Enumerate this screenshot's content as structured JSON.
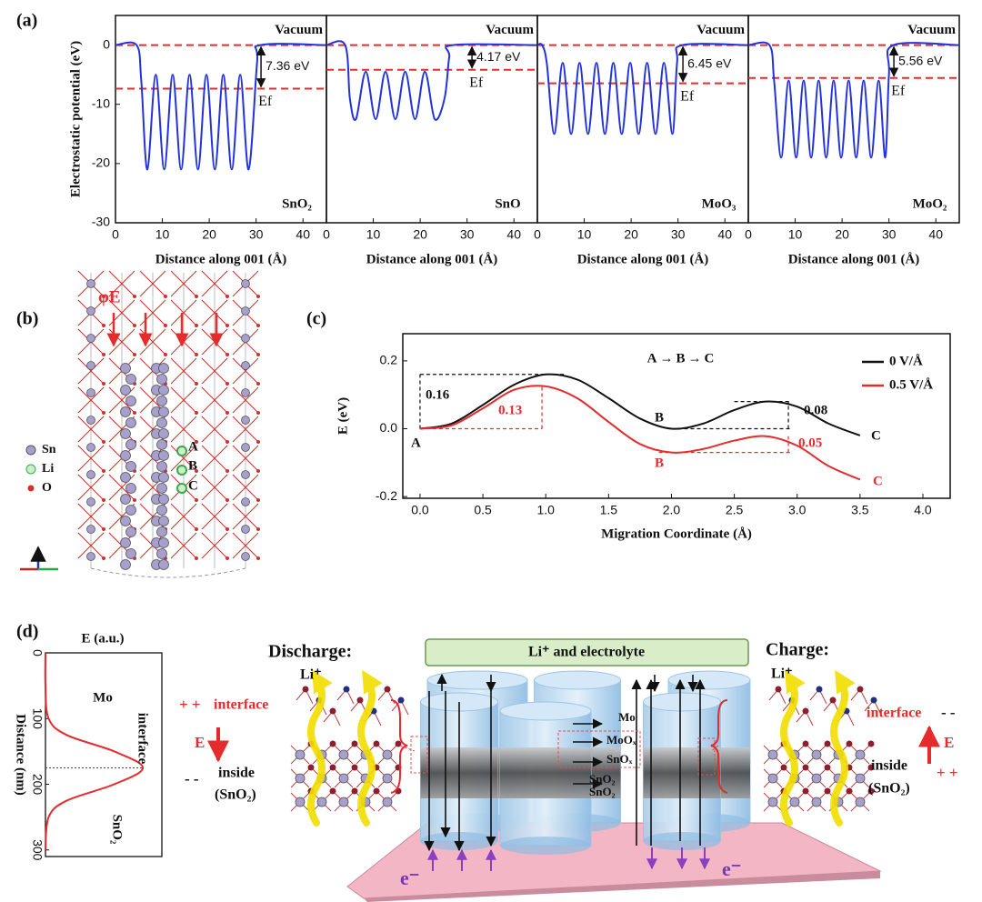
{
  "panel_labels": [
    "(a)",
    "(b)",
    "(c)",
    "(d)"
  ],
  "chart_data": [
    {
      "type": "line",
      "ylabel": "Electrostatic potential (eV)",
      "xlabel": "Distance along 001 (Å)",
      "xlim": [
        0,
        45
      ],
      "xticks": [
        0,
        10,
        20,
        30,
        40
      ],
      "ylim": [
        -30,
        5
      ],
      "yticks": [
        0,
        -10,
        -20,
        -30
      ],
      "x": [
        0,
        4.5,
        5.5,
        6.8,
        8.6,
        10.4,
        12.2,
        14,
        15.8,
        17.6,
        19.4,
        21.2,
        23,
        24.8,
        26.6,
        28.4,
        30.2,
        31,
        45
      ],
      "series": [
        {
          "color": "#2233dd",
          "values": [
            0,
            0,
            -6,
            -21,
            -5,
            -21,
            -5,
            -21,
            -5,
            -21,
            -5,
            -21,
            -5,
            -21,
            -5,
            -21,
            -3,
            0,
            0
          ]
        }
      ],
      "material": "SnO₂",
      "vacuum_label": "Vacuum",
      "fermi_label": "Ef",
      "gap_label": "7.36 eV",
      "vacuum_level": 0,
      "fermi_level": -7.36,
      "reference_color": "#e52b2b"
    },
    {
      "type": "line",
      "xlabel": "Distance along 001 (Å)",
      "xlim": [
        0,
        45
      ],
      "xticks": [
        0,
        10,
        20,
        30,
        40
      ],
      "ylim": [
        -30,
        5
      ],
      "x": [
        0,
        4,
        5,
        6.3,
        8.4,
        10.5,
        12.6,
        14.7,
        16.8,
        18.9,
        21,
        23.1,
        25.2,
        26.2,
        27,
        45
      ],
      "series": [
        {
          "color": "#2233dd",
          "values": [
            0,
            0,
            -9,
            -12.5,
            -4.5,
            -12.5,
            -4.5,
            -12.5,
            -4.5,
            -12.5,
            -4.5,
            -12.5,
            -9,
            -2,
            0,
            0
          ]
        }
      ],
      "material": "SnO",
      "vacuum_label": "Vacuum",
      "fermi_label": "Ef",
      "gap_label": "4.17 eV",
      "vacuum_level": 0,
      "fermi_level": -4.17,
      "reference_color": "#e52b2b"
    },
    {
      "type": "line",
      "xlabel": "Distance along 001 (Å)",
      "xlim": [
        0,
        45
      ],
      "xticks": [
        0,
        10,
        20,
        30,
        40
      ],
      "ylim": [
        -30,
        5
      ],
      "x": [
        0,
        1,
        2,
        3.6,
        5.4,
        7.2,
        9,
        10.8,
        12.6,
        14.4,
        16.2,
        18,
        19.8,
        21.6,
        23.4,
        25.2,
        27,
        28.8,
        29.8,
        31,
        45
      ],
      "series": [
        {
          "color": "#2233dd",
          "values": [
            0,
            0,
            -3,
            -15,
            -3,
            -15,
            -3,
            -15,
            -3,
            -15,
            -3,
            -15,
            -3,
            -15,
            -3,
            -15,
            -3,
            -15,
            -3,
            0,
            0
          ]
        }
      ],
      "material": "MoO₃",
      "vacuum_label": "Vacuum",
      "fermi_label": "Ef",
      "gap_label": "6.45 eV",
      "vacuum_level": 0,
      "fermi_level": -6.45,
      "reference_color": "#e52b2b"
    },
    {
      "type": "line",
      "xlabel": "Distance along 001 (Å)",
      "xlim": [
        0,
        45
      ],
      "xticks": [
        0,
        10,
        20,
        30,
        40
      ],
      "ylim": [
        -30,
        5
      ],
      "x": [
        0,
        4.5,
        5.5,
        7,
        8.6,
        10.2,
        11.8,
        13.4,
        15,
        16.6,
        18.2,
        19.8,
        21.4,
        23,
        24.6,
        26.2,
        27.8,
        29.2,
        30,
        31,
        45
      ],
      "series": [
        {
          "color": "#2233dd",
          "values": [
            0,
            0,
            -6,
            -19,
            -6,
            -19,
            -6,
            -19,
            -6,
            -19,
            -6,
            -19,
            -6,
            -19,
            -6,
            -19,
            -6,
            -19,
            -5,
            0,
            0
          ]
        }
      ],
      "material": "MoO₂",
      "vacuum_label": "Vacuum",
      "fermi_label": "Ef",
      "gap_label": "5.56 eV",
      "vacuum_level": 0,
      "fermi_level": -5.56,
      "reference_color": "#e52b2b"
    },
    {
      "type": "line",
      "ylabel": "E (eV)",
      "xlabel": "Migration Coordinate (Å)",
      "path_label": "A→B→C",
      "xlim": [
        -0.137,
        4.217
      ],
      "xticks": [
        {
          "value": 0,
          "label": "0.0"
        },
        0.5,
        {
          "value": 1,
          "label": "1.0"
        },
        1.5,
        {
          "value": 2,
          "label": "2.0"
        },
        2.5,
        {
          "value": 3,
          "label": "3.0"
        },
        3.5,
        {
          "value": 4,
          "label": "4.0"
        }
      ],
      "ylim": [
        -0.205,
        0.28
      ],
      "yticks": [
        -0.2,
        {
          "value": 0,
          "label": "0.0"
        },
        0.2
      ],
      "legend": "top-right",
      "x": [
        0,
        0.25,
        0.5,
        0.75,
        1,
        1.25,
        1.5,
        1.75,
        2,
        2.25,
        2.5,
        2.75,
        3,
        3.25,
        3.5
      ],
      "series": [
        {
          "name": "0 V/Å",
          "color": "#111111",
          "values": [
            0,
            0.015,
            0.07,
            0.13,
            0.16,
            0.145,
            0.09,
            0.03,
            0,
            0.015,
            0.055,
            0.08,
            0.065,
            0.015,
            -0.02
          ],
          "barrier_labels": [
            "0.16",
            "0.08"
          ],
          "point_labels": [
            "A",
            "B",
            "C"
          ]
        },
        {
          "name": "0.5 V/Å",
          "color": "#e52b2b",
          "values": [
            0,
            0.01,
            0.06,
            0.115,
            0.125,
            0.09,
            0.02,
            -0.045,
            -0.07,
            -0.06,
            -0.035,
            -0.022,
            -0.05,
            -0.11,
            -0.15
          ],
          "barrier_labels": [
            "0.13",
            "0.05"
          ],
          "point_labels": [
            "B",
            "C"
          ]
        }
      ]
    },
    {
      "type": "line",
      "title": "E (a.u.)",
      "xlabel": "Distance (nm)",
      "xlim": [
        0,
        310
      ],
      "xticks": [
        0,
        100,
        200,
        300
      ],
      "ylim": [
        0,
        1.1
      ],
      "x": [
        0,
        50,
        100,
        125,
        150,
        175,
        200,
        225,
        250,
        300
      ],
      "series": [
        {
          "color": "#e52b2b",
          "values": [
            0,
            0,
            0.03,
            0.2,
            0.65,
            0.92,
            0.65,
            0.2,
            0.03,
            0
          ]
        }
      ],
      "region_labels": [
        "Mo",
        "interface",
        "SnO₂"
      ]
    }
  ],
  "structure": {
    "field_label": "φE",
    "legend": [
      "Sn",
      "Li",
      "O"
    ],
    "sites": [
      "A",
      "B",
      "C"
    ]
  },
  "mechanism": {
    "electrolyte": "Li⁺ and electrolyte",
    "discharge": {
      "title": "Discharge:",
      "ion": "Li⁺",
      "interface_charge": "+ +",
      "interface": "interface",
      "field": "E",
      "inside_charge": "- -",
      "inside": "inside",
      "inside_material": "(SnO₂)"
    },
    "charge": {
      "title": "Charge:",
      "ion": "Li⁺",
      "interface_charge": "- -",
      "interface": "interface",
      "field": "E",
      "inside_charge": "+ +",
      "inside": "inside",
      "inside_material": "(SnO₂)"
    },
    "layers": [
      "Mo",
      "MoOₓ",
      "SnOₓ",
      "SnO₂",
      "SnO₂"
    ],
    "electron": [
      "e⁻",
      "e⁻"
    ]
  }
}
